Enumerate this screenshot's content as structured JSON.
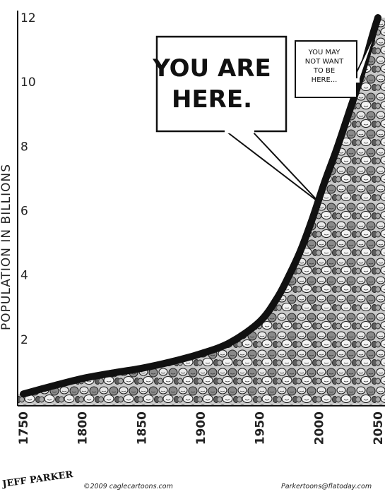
{
  "chart_data": {
    "type": "area",
    "title": "",
    "xlabel": "",
    "ylabel": "POPULATION IN BILLIONS",
    "xlim": [
      1750,
      2050
    ],
    "ylim": [
      0,
      12
    ],
    "x_ticks": [
      "1750",
      "1800",
      "1850",
      "1900",
      "1950",
      "2000",
      "2050"
    ],
    "y_ticks": [
      "2",
      "4",
      "6",
      "8",
      "10",
      "12"
    ],
    "grid": false,
    "legend": "none",
    "series": [
      {
        "x": [
          1750,
          1775,
          1800,
          1825,
          1850,
          1875,
          1900,
          1925,
          1950,
          1965,
          1975,
          1985,
          1995,
          2005,
          2015,
          2025,
          2035,
          2045,
          2050
        ],
        "y": [
          0.3,
          0.55,
          0.78,
          0.95,
          1.1,
          1.3,
          1.55,
          1.9,
          2.55,
          3.3,
          4.0,
          4.8,
          5.8,
          6.9,
          7.9,
          9.0,
          10.1,
          11.4,
          12.0
        ]
      }
    ],
    "annotations": [
      {
        "text": "YOU ARE\nHERE.",
        "x": 2008,
        "y": 6.7
      },
      {
        "text": "YOU MAY\nNOT WANT\nTO BE\nHERE...",
        "x": 2050,
        "y": 12.0
      }
    ]
  },
  "credits": {
    "signature": "JEFF PARKER",
    "left": "©2009 caglecartoons.com",
    "right": "Parkertoons@flatoday.com"
  },
  "colors": {
    "line": "#111111",
    "crowd_fill": "#c4c4c4",
    "background": "#ffffff"
  }
}
